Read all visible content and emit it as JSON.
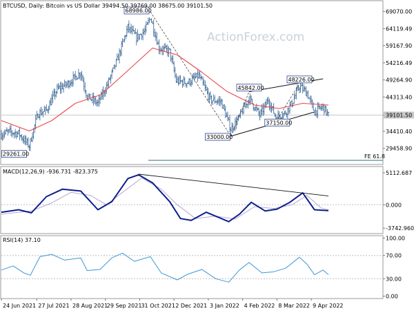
{
  "chart_data": [
    {
      "type": "ohlc",
      "title": "BTCUSD, Daily:  Bitcoin vs US Dollar  39494.50 39769.00 38675.00 39101.50",
      "watermark": "ActionForex.com",
      "ylim": [
        25000,
        72000
      ],
      "y_ticks": [
        "69070.00",
        "64119.49",
        "59167.90",
        "54216.49",
        "49264.90",
        "44313.40",
        "39101.50",
        "34410.40",
        "29458.90"
      ],
      "last_price": "39101.50",
      "x_ticks": [
        "24 Jun 2021",
        "27 Jul 2021",
        "28 Aug 2021",
        "29 Sep 2021",
        "31 Oct 2021",
        "2 Dec 2021",
        "3 Jan 2022",
        "4 Feb 2022",
        "8 Mar 2022",
        "9 Apr 2022"
      ],
      "x_range": [
        "2021-06-24",
        "2022-04-25"
      ],
      "price_path": [
        {
          "x": "2021-06-24",
          "y": 33500
        },
        {
          "x": "2021-07-01",
          "y": 34200
        },
        {
          "x": "2021-07-10",
          "y": 33800
        },
        {
          "x": "2021-07-20",
          "y": 30200
        },
        {
          "x": "2021-07-28",
          "y": 39500
        },
        {
          "x": "2021-08-05",
          "y": 40500
        },
        {
          "x": "2021-08-15",
          "y": 46500
        },
        {
          "x": "2021-08-25",
          "y": 48200
        },
        {
          "x": "2021-09-06",
          "y": 51500
        },
        {
          "x": "2021-09-12",
          "y": 44500
        },
        {
          "x": "2021-09-22",
          "y": 42500
        },
        {
          "x": "2021-10-01",
          "y": 48000
        },
        {
          "x": "2021-10-10",
          "y": 55000
        },
        {
          "x": "2021-10-20",
          "y": 64500
        },
        {
          "x": "2021-10-28",
          "y": 61500
        },
        {
          "x": "2021-11-05",
          "y": 63500
        },
        {
          "x": "2021-11-10",
          "y": 67500
        },
        {
          "x": "2021-11-18",
          "y": 58500
        },
        {
          "x": "2021-11-28",
          "y": 57500
        },
        {
          "x": "2021-12-04",
          "y": 49000
        },
        {
          "x": "2021-12-15",
          "y": 48500
        },
        {
          "x": "2021-12-25",
          "y": 50500
        },
        {
          "x": "2022-01-05",
          "y": 43500
        },
        {
          "x": "2022-01-15",
          "y": 43000
        },
        {
          "x": "2022-01-24",
          "y": 35000
        },
        {
          "x": "2022-02-01",
          "y": 38500
        },
        {
          "x": "2022-02-10",
          "y": 44000
        },
        {
          "x": "2022-02-20",
          "y": 39000
        },
        {
          "x": "2022-02-28",
          "y": 43500
        },
        {
          "x": "2022-03-07",
          "y": 38500
        },
        {
          "x": "2022-03-15",
          "y": 39500
        },
        {
          "x": "2022-03-22",
          "y": 42500
        },
        {
          "x": "2022-03-29",
          "y": 47500
        },
        {
          "x": "2022-04-05",
          "y": 45500
        },
        {
          "x": "2022-04-12",
          "y": 40000
        },
        {
          "x": "2022-04-20",
          "y": 41500
        },
        {
          "x": "2022-04-25",
          "y": 39100
        }
      ],
      "ma_path": [
        {
          "x": "2021-06-24",
          "y": 37500
        },
        {
          "x": "2021-07-20",
          "y": 34500
        },
        {
          "x": "2021-08-10",
          "y": 37500
        },
        {
          "x": "2021-09-01",
          "y": 42500
        },
        {
          "x": "2021-09-25",
          "y": 45000
        },
        {
          "x": "2021-10-20",
          "y": 52000
        },
        {
          "x": "2021-11-12",
          "y": 58500
        },
        {
          "x": "2021-12-05",
          "y": 56500
        },
        {
          "x": "2021-12-28",
          "y": 51500
        },
        {
          "x": "2022-01-20",
          "y": 46000
        },
        {
          "x": "2022-02-15",
          "y": 42000
        },
        {
          "x": "2022-03-10",
          "y": 41000
        },
        {
          "x": "2022-04-01",
          "y": 42500
        },
        {
          "x": "2022-04-25",
          "y": 42000
        }
      ],
      "annotations": [
        {
          "text": "68986.00",
          "x": "2021-11-10",
          "y": 68986
        },
        {
          "text": "29261.00",
          "x": "2021-07-20",
          "y": 29261
        },
        {
          "text": "45842.00",
          "x": "2022-02-10",
          "y": 45842
        },
        {
          "text": "48226.00",
          "x": "2022-03-29",
          "y": 48226
        },
        {
          "text": "33000.00",
          "x": "2022-01-24",
          "y": 33000
        },
        {
          "text": "37150.00",
          "x": "2022-03-07",
          "y": 37150
        },
        {
          "text": "FE 61.8",
          "x": "2022-04-25",
          "y": 26000
        }
      ],
      "fe_level": 26000,
      "channel_upper": [
        {
          "x": "2022-02-10",
          "y": 45842
        },
        {
          "x": "2022-04-20",
          "y": 49600
        }
      ],
      "channel_lower": [
        {
          "x": "2022-01-24",
          "y": 33000
        },
        {
          "x": "2022-04-12",
          "y": 40000
        }
      ],
      "dashed_lines": [
        [
          {
            "x": "2021-11-10",
            "y": 68986
          },
          {
            "x": "2022-01-24",
            "y": 33000
          }
        ],
        [
          {
            "x": "2022-01-24",
            "y": 33000
          },
          {
            "x": "2022-02-10",
            "y": 45842
          }
        ],
        [
          {
            "x": "2022-03-07",
            "y": 37150
          },
          {
            "x": "2022-03-29",
            "y": 48226
          }
        ]
      ]
    },
    {
      "type": "line",
      "title": "MACD(12,26,9) -936.731 -823.375",
      "ylim": [
        -4500,
        6000
      ],
      "y_ticks": [
        "5112.687",
        "0.000",
        "-3742.960"
      ],
      "macd_path": [
        {
          "x": "2021-06-24",
          "y": -1200
        },
        {
          "x": "2021-07-10",
          "y": -800
        },
        {
          "x": "2021-07-22",
          "y": -1300
        },
        {
          "x": "2021-08-05",
          "y": 1300
        },
        {
          "x": "2021-08-20",
          "y": 2500
        },
        {
          "x": "2021-09-06",
          "y": 2200
        },
        {
          "x": "2021-09-22",
          "y": -800
        },
        {
          "x": "2021-10-05",
          "y": 500
        },
        {
          "x": "2021-10-20",
          "y": 4200
        },
        {
          "x": "2021-10-30",
          "y": 4800
        },
        {
          "x": "2021-11-12",
          "y": 3500
        },
        {
          "x": "2021-11-28",
          "y": 500
        },
        {
          "x": "2021-12-08",
          "y": -2200
        },
        {
          "x": "2021-12-18",
          "y": -2500
        },
        {
          "x": "2022-01-01",
          "y": -1200
        },
        {
          "x": "2022-01-22",
          "y": -2700
        },
        {
          "x": "2022-02-01",
          "y": -1500
        },
        {
          "x": "2022-02-12",
          "y": 400
        },
        {
          "x": "2022-02-25",
          "y": -1000
        },
        {
          "x": "2022-03-08",
          "y": -700
        },
        {
          "x": "2022-03-20",
          "y": 400
        },
        {
          "x": "2022-04-01",
          "y": 1900
        },
        {
          "x": "2022-04-12",
          "y": -800
        },
        {
          "x": "2022-04-25",
          "y": -937
        }
      ],
      "signal_path": [
        {
          "x": "2021-06-24",
          "y": -1500
        },
        {
          "x": "2021-07-22",
          "y": -1000
        },
        {
          "x": "2021-08-10",
          "y": 300
        },
        {
          "x": "2021-08-28",
          "y": 2000
        },
        {
          "x": "2021-09-15",
          "y": 1500
        },
        {
          "x": "2021-09-30",
          "y": 0
        },
        {
          "x": "2021-10-15",
          "y": 2000
        },
        {
          "x": "2021-11-02",
          "y": 4300
        },
        {
          "x": "2021-11-20",
          "y": 2500
        },
        {
          "x": "2021-12-05",
          "y": 0
        },
        {
          "x": "2021-12-22",
          "y": -2200
        },
        {
          "x": "2022-01-10",
          "y": -1800
        },
        {
          "x": "2022-01-28",
          "y": -2300
        },
        {
          "x": "2022-02-15",
          "y": -300
        },
        {
          "x": "2022-03-05",
          "y": -600
        },
        {
          "x": "2022-03-22",
          "y": 0
        },
        {
          "x": "2022-04-05",
          "y": 1500
        },
        {
          "x": "2022-04-18",
          "y": -500
        },
        {
          "x": "2022-04-25",
          "y": -823
        }
      ],
      "trendline": [
        {
          "x": "2021-10-30",
          "y": 4900
        },
        {
          "x": "2022-04-25",
          "y": 1400
        }
      ]
    },
    {
      "type": "line",
      "title": "RSI(14) 37.10",
      "ylim": [
        0,
        100
      ],
      "y_ticks": [
        "100.00",
        "70.00",
        "30.00",
        "0.00"
      ],
      "levels": [
        70,
        30
      ],
      "rsi_path": [
        {
          "x": "2021-06-24",
          "y": 45
        },
        {
          "x": "2021-07-05",
          "y": 52
        },
        {
          "x": "2021-07-15",
          "y": 40
        },
        {
          "x": "2021-07-21",
          "y": 36
        },
        {
          "x": "2021-07-30",
          "y": 68
        },
        {
          "x": "2021-08-10",
          "y": 72
        },
        {
          "x": "2021-08-22",
          "y": 62
        },
        {
          "x": "2021-09-06",
          "y": 66
        },
        {
          "x": "2021-09-12",
          "y": 44
        },
        {
          "x": "2021-09-24",
          "y": 46
        },
        {
          "x": "2021-10-05",
          "y": 66
        },
        {
          "x": "2021-10-15",
          "y": 74
        },
        {
          "x": "2021-10-26",
          "y": 60
        },
        {
          "x": "2021-11-10",
          "y": 68
        },
        {
          "x": "2021-11-20",
          "y": 40
        },
        {
          "x": "2021-12-05",
          "y": 28
        },
        {
          "x": "2021-12-15",
          "y": 38
        },
        {
          "x": "2021-12-28",
          "y": 46
        },
        {
          "x": "2022-01-10",
          "y": 30
        },
        {
          "x": "2022-01-22",
          "y": 24
        },
        {
          "x": "2022-02-01",
          "y": 45
        },
        {
          "x": "2022-02-10",
          "y": 58
        },
        {
          "x": "2022-02-22",
          "y": 40
        },
        {
          "x": "2022-03-05",
          "y": 42
        },
        {
          "x": "2022-03-16",
          "y": 48
        },
        {
          "x": "2022-03-29",
          "y": 67
        },
        {
          "x": "2022-04-05",
          "y": 55
        },
        {
          "x": "2022-04-12",
          "y": 37
        },
        {
          "x": "2022-04-20",
          "y": 45
        },
        {
          "x": "2022-04-25",
          "y": 37.1
        }
      ]
    }
  ]
}
